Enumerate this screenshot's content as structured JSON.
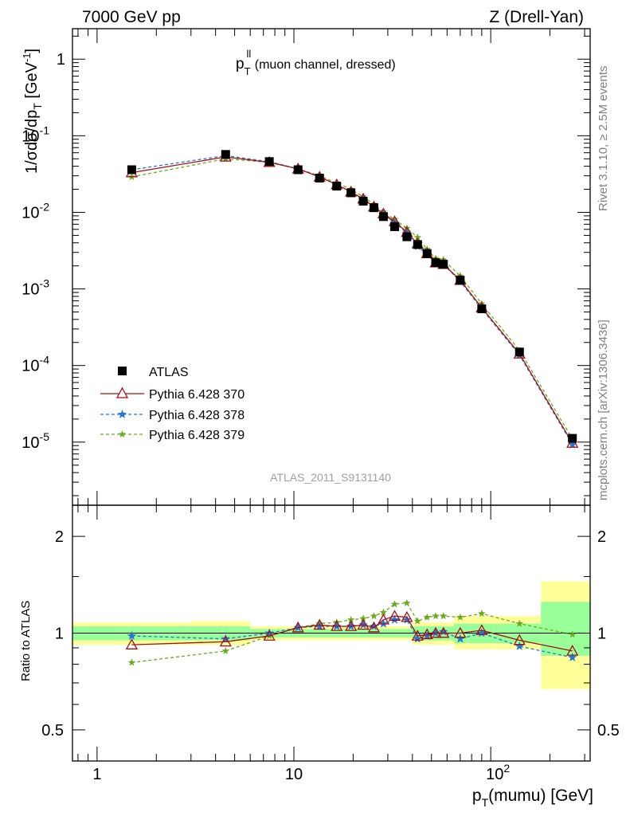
{
  "header": {
    "left": "7000 GeV pp",
    "right": "Z (Drell-Yan)"
  },
  "side_text": {
    "rivet": "Rivet 3.1.10, ≥ 2.5M events",
    "mcplots": "mcplots.cern.ch [arXiv:1306.3436]"
  },
  "colors": {
    "atlas": "#000000",
    "p370": "#a50f15",
    "p378": "#1f78d4",
    "p379": "#6aaa1e",
    "band_inner": "#99ff99",
    "band_outer": "#ffff99"
  },
  "chart_data": [
    {
      "type": "line",
      "title": "p_T^ll (muon channel, dressed)",
      "title_main": "p",
      "title_sub": "T",
      "title_sup": "ll",
      "title_rest": " (muon channel, dressed)",
      "ylabel_main": "1/σdσ/dp",
      "ylabel_sub": "T",
      "ylabel_unit": " [GeV",
      "ylabel_unit_sup": "-1",
      "ylabel_close": "]",
      "watermark": "ATLAS_2011_S9131140",
      "x_scale": "log",
      "y_scale": "log",
      "xlim": [
        0.75,
        320
      ],
      "ylim": [
        1.5e-06,
        2.5
      ],
      "y_ticks": [
        {
          "mant": "1",
          "exp": ""
        },
        {
          "mant": "10",
          "exp": "-1"
        },
        {
          "mant": "10",
          "exp": "-2"
        },
        {
          "mant": "10",
          "exp": "-3"
        },
        {
          "mant": "10",
          "exp": "-4"
        },
        {
          "mant": "10",
          "exp": "-5"
        }
      ],
      "x": [
        1.5,
        4.5,
        7.5,
        10.5,
        13.5,
        16.5,
        19.5,
        22.5,
        25.5,
        28.5,
        32.5,
        37.5,
        42.5,
        47.5,
        52.5,
        57.5,
        70.0,
        90.0,
        140.0,
        260.0
      ],
      "legend_position": "left-center",
      "series": [
        {
          "name": "ATLAS",
          "marker": "square",
          "style": "none",
          "values": [
            0.036,
            0.057,
            0.046,
            0.036,
            0.028,
            0.022,
            0.018,
            0.014,
            0.0115,
            0.0088,
            0.0065,
            0.0048,
            0.0038,
            0.0029,
            0.0022,
            0.0021,
            0.0013,
            0.00055,
            0.00015,
            1.12e-05
          ]
        },
        {
          "name": "Pythia 6.428 370",
          "marker": "triangle",
          "style": "solid",
          "values": [
            0.033,
            0.053,
            0.045,
            0.037,
            0.029,
            0.023,
            0.0185,
            0.015,
            0.0118,
            0.0096,
            0.0076,
            0.0055,
            0.0039,
            0.0029,
            0.0022,
            0.0021,
            0.0013,
            0.00057,
            0.000142,
            9.7e-06
          ]
        },
        {
          "name": "Pythia 6.428 378",
          "marker": "star",
          "style": "dashed",
          "values": [
            0.036,
            0.055,
            0.046,
            0.037,
            0.029,
            0.023,
            0.0185,
            0.0149,
            0.0118,
            0.0094,
            0.0073,
            0.0054,
            0.0036,
            0.0028,
            0.0022,
            0.0021,
            0.00125,
            0.00055,
            0.000137,
            9.3e-06
          ]
        },
        {
          "name": "Pythia 6.428 379",
          "marker": "star",
          "style": "dashed",
          "values": [
            0.029,
            0.05,
            0.045,
            0.037,
            0.03,
            0.024,
            0.02,
            0.016,
            0.0128,
            0.0101,
            0.0081,
            0.0062,
            0.0047,
            0.0033,
            0.0025,
            0.0024,
            0.00148,
            0.00064,
            0.000157,
            1.1e-05
          ]
        }
      ]
    },
    {
      "type": "line",
      "ylabel": "Ratio to ATLAS",
      "xlabel_main": "p",
      "xlabel_sub": "T",
      "xlabel_rest": "(mumu) [GeV]",
      "x_scale": "log",
      "y_scale": "log",
      "xlim": [
        0.75,
        320
      ],
      "ylim": [
        0.4,
        2.5
      ],
      "y_ticks": [
        "2",
        "1",
        "0.5"
      ],
      "x_ticks": [
        {
          "mant": "1",
          "exp": ""
        },
        {
          "mant": "10",
          "exp": ""
        },
        {
          "mant": "10",
          "exp": "2"
        }
      ],
      "bands": [
        {
          "x_from": 0.75,
          "x_to": 3.0,
          "inner": [
            0.95,
            1.05
          ],
          "outer": [
            0.92,
            1.08
          ]
        },
        {
          "x_from": 3.0,
          "x_to": 6.0,
          "inner": [
            0.95,
            1.05
          ],
          "outer": [
            0.92,
            1.09
          ]
        },
        {
          "x_from": 6.0,
          "x_to": 40.0,
          "inner": [
            0.97,
            1.03
          ],
          "outer": [
            0.95,
            1.05
          ]
        },
        {
          "x_from": 40.0,
          "x_to": 65.0,
          "inner": [
            0.95,
            1.05
          ],
          "outer": [
            0.92,
            1.08
          ]
        },
        {
          "x_from": 65.0,
          "x_to": 180.0,
          "inner": [
            0.93,
            1.07
          ],
          "outer": [
            0.89,
            1.13
          ]
        },
        {
          "x_from": 180.0,
          "x_to": 320.0,
          "inner": [
            0.85,
            1.25
          ],
          "outer": [
            0.67,
            1.45
          ]
        }
      ],
      "series": [
        {
          "name": "Pythia 6.428 370",
          "values": [
            0.92,
            0.94,
            0.98,
            1.04,
            1.06,
            1.05,
            1.05,
            1.06,
            1.04,
            1.1,
            1.13,
            1.12,
            0.98,
            0.99,
            1.0,
            1.0,
            1.0,
            1.02,
            0.95,
            0.88
          ]
        },
        {
          "name": "Pythia 6.428 378",
          "values": [
            0.98,
            0.96,
            1.0,
            1.04,
            1.05,
            1.05,
            1.05,
            1.06,
            1.05,
            1.07,
            1.1,
            1.1,
            0.96,
            0.98,
            1.0,
            1.01,
            0.96,
            1.0,
            0.91,
            0.84
          ]
        },
        {
          "name": "Pythia 6.428 379",
          "values": [
            0.81,
            0.88,
            0.98,
            1.04,
            1.07,
            1.08,
            1.1,
            1.11,
            1.13,
            1.16,
            1.23,
            1.24,
            1.09,
            1.12,
            1.13,
            1.13,
            1.12,
            1.15,
            1.07,
            0.99
          ]
        }
      ]
    }
  ]
}
